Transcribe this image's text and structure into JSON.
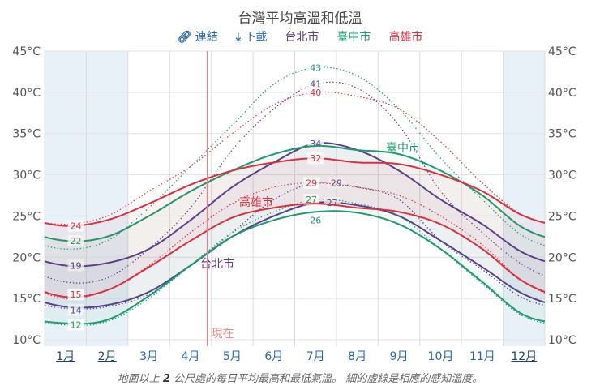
{
  "title": "台灣平均高溫和低溫",
  "toolbar": {
    "link_label": "連結",
    "download_label": "下載",
    "link_icon": "link-icon",
    "download_icon": "download-icon"
  },
  "caption_parts": [
    "地面以上 ",
    "2",
    " 公尺處的每日平均最高和最低氣溫。 細的虛線是相應的感知溫度。"
  ],
  "now_label": "現在",
  "chart_data": {
    "type": "line",
    "title": "台灣平均高溫和低溫",
    "categories": [
      "1月",
      "2月",
      "3月",
      "4月",
      "5月",
      "6月",
      "7月",
      "8月",
      "9月",
      "10月",
      "11月",
      "12月"
    ],
    "underlined_months": [
      0,
      1,
      11
    ],
    "shaded_months": [
      0,
      1,
      11
    ],
    "now_month_fraction": 3.9,
    "yticks": [
      "10°C",
      "15°C",
      "20°C",
      "25°C",
      "30°C",
      "35°C",
      "40°C",
      "45°C"
    ],
    "ylim": [
      10,
      45
    ],
    "grid": true,
    "legend_placement": "top",
    "series": [
      {
        "name": "台北市",
        "color": "#5a3d8f",
        "high": [
          19,
          19.3,
          21,
          24.5,
          28.5,
          31.5,
          33.8,
          33,
          30.5,
          27,
          24,
          20.5
        ],
        "low": [
          14,
          14.2,
          15.8,
          19,
          22.5,
          25,
          26.6,
          26.3,
          25,
          22,
          18.8,
          15.5
        ],
        "feels_high": [
          17,
          17.5,
          21,
          26,
          33,
          38,
          41,
          40.5,
          36,
          28,
          23,
          19
        ],
        "feels_low": [
          13.8,
          14,
          15.5,
          19,
          23,
          27,
          29,
          28.5,
          27,
          22,
          18.5,
          15
        ],
        "labels": {
          "high_min": "19",
          "high_max": "34",
          "low_min": "14",
          "low_max": "27",
          "feels_high_max": "41",
          "feels_low_max": "29"
        }
      },
      {
        "name": "臺中市",
        "color": "#1e9a6b",
        "high": [
          22,
          22.5,
          25,
          28,
          30.5,
          32.5,
          33.5,
          33,
          32.5,
          30.5,
          27.5,
          23.5
        ],
        "low": [
          12,
          12.4,
          15.3,
          19,
          22.5,
          24.5,
          25.5,
          25.4,
          24,
          21,
          17,
          13
        ],
        "feels_high": [
          21,
          22,
          26,
          31,
          36,
          41,
          43,
          42,
          38,
          32,
          27,
          22.5
        ],
        "feels_low": [
          11.8,
          12.2,
          15,
          19,
          23,
          25.5,
          27,
          26.5,
          25,
          21,
          16.8,
          12.8
        ],
        "labels": {
          "high_min": "22",
          "high_max": "",
          "low_min": "12",
          "low_max": "26",
          "feels_high_max": "43",
          "feels_low_max": "27"
        }
      },
      {
        "name": "高雄市",
        "color": "#d8303f",
        "high": [
          23.8,
          24.5,
          26.5,
          28.8,
          30.5,
          31.5,
          32,
          31.5,
          31.3,
          30,
          28,
          25
        ],
        "low": [
          15.2,
          16,
          18.8,
          22,
          24.8,
          26,
          26.5,
          26,
          25.5,
          24,
          21,
          17
        ],
        "feels_high": [
          24,
          25,
          28,
          31,
          35,
          38.5,
          40,
          39.5,
          38,
          34,
          29,
          25
        ],
        "feels_low": [
          15,
          16,
          19,
          23,
          26.5,
          28.5,
          29,
          28.5,
          27.5,
          25,
          21.5,
          17
        ],
        "labels": {
          "high_min": "24",
          "high_max": "32",
          "low_min": "15",
          "low_max": "",
          "feels_high_max": "40",
          "feels_low_max": "29"
        }
      }
    ],
    "series_annotations": {
      "taipei": "台北市",
      "taichung": "臺中市",
      "kaohsiung": "高雄市"
    }
  }
}
